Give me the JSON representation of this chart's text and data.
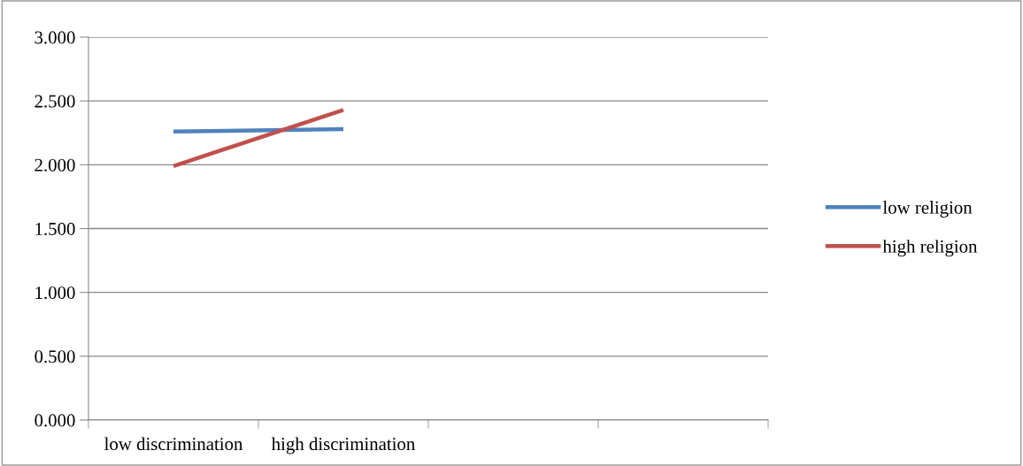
{
  "chart_data": {
    "type": "line",
    "categories": [
      "low discrimination",
      "high discrimination",
      null,
      null
    ],
    "series": [
      {
        "name": "low religion",
        "color": "#4f81bd",
        "values": [
          2.26,
          2.28,
          null,
          null
        ]
      },
      {
        "name": "high religion",
        "color": "#c0504d",
        "values": [
          1.99,
          2.43,
          null,
          null
        ]
      }
    ],
    "ylim": [
      0,
      3
    ],
    "yticks": [
      {
        "value": 0,
        "label": "0.000"
      },
      {
        "value": 0.5,
        "label": "0.500"
      },
      {
        "value": 1,
        "label": "1.000"
      },
      {
        "value": 1.5,
        "label": "1.500"
      },
      {
        "value": 2,
        "label": "2.000"
      },
      {
        "value": 2.5,
        "label": "2.500"
      },
      {
        "value": 3,
        "label": "3.000"
      }
    ],
    "grid": "y",
    "legend": "right",
    "marker": "none",
    "line_style": "solid"
  }
}
